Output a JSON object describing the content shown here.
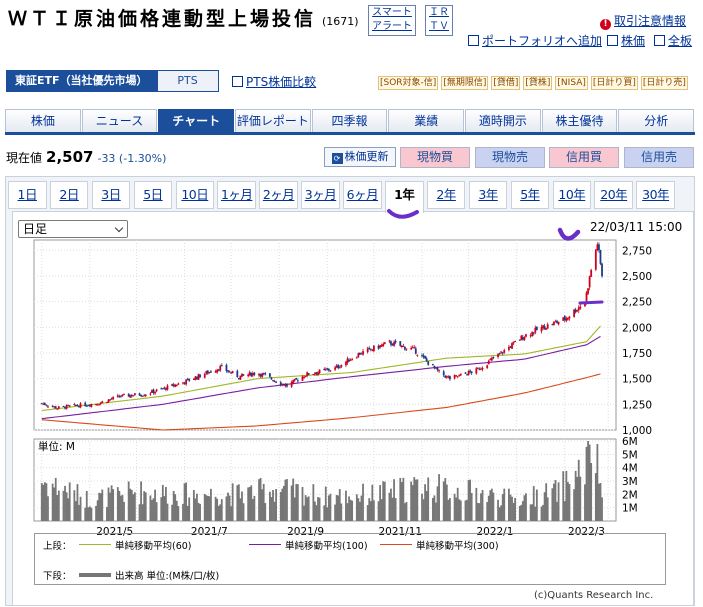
{
  "header": {
    "title": "ＷＴＩ原油価格連動型上場投信",
    "code": "(1671)",
    "smart_alert": [
      "スマート",
      "アラート"
    ],
    "ir_tv": [
      "ＩＲ",
      "ＴＶ"
    ],
    "caution_link": "取引注意情報",
    "portfolio_link": "ポートフォリオへ追加",
    "stock_price_link": "株価",
    "all_boards_link": "全板"
  },
  "market": {
    "active": "東証ETF（当社優先市場）",
    "pts": "PTS",
    "pts_compare": "PTS株価比較",
    "badges": [
      "[SOR対象-信]",
      "[無期限信]",
      "[貸借]",
      "[貸株]",
      "[NISA]",
      "[日計り買]",
      "[日計り売]"
    ]
  },
  "nav_tabs": [
    "株価",
    "ニュース",
    "チャート",
    "評価レポート",
    "四季報",
    "業績",
    "適時開示",
    "株主優待",
    "分析"
  ],
  "nav_active": "チャート",
  "quote": {
    "label": "現在値",
    "price": "2,507",
    "change": "-33 (-1.30%)",
    "refresh_button": "株価更新",
    "buy_spot": "現物買",
    "sell_spot": "現物売",
    "buy_margin": "信用買",
    "sell_margin": "信用売"
  },
  "periods": [
    "1日",
    "2日",
    "3日",
    "5日",
    "10日",
    "1ヶ月",
    "2ヶ月",
    "3ヶ月",
    "6ヶ月",
    "1年",
    "2年",
    "3年",
    "5年",
    "10年",
    "20年",
    "30年"
  ],
  "period_active": "1年",
  "chart_controls": {
    "interval_select": "日足",
    "datetime": "22/03/11 15:00"
  },
  "legend": {
    "upper_label": "上段：",
    "ma60": "単純移動平均(60)",
    "ma100": "単純移動平均(100)",
    "ma300": "単純移動平均(300)",
    "lower_label": "下段：",
    "volume": "出来高 単位:(M株/口/枚)"
  },
  "copyright": "(c)Quants Research Inc.",
  "colors": {
    "up": "#d0021b",
    "down": "#1b3a8c",
    "ma60": "#a0b828",
    "ma100": "#7a1fa2",
    "ma300": "#d94a1a",
    "volume": "#777777",
    "accent": "#1b4e9b",
    "annotation": "#6a2fc9"
  },
  "chart_data": [
    {
      "type": "candlestick",
      "interval": "daily",
      "ylim": [
        1000,
        2850
      ],
      "yticks": [
        1000,
        1250,
        1500,
        1750,
        2000,
        2250,
        2500,
        2750
      ],
      "ytick_labels": [
        "1,000",
        "1,250",
        "1,500",
        "1,750",
        "2,000",
        "2,250",
        "2,500",
        "2,750"
      ],
      "xticks": [
        "2021/5",
        "2021/7",
        "2021/9",
        "2021/11",
        "2022/1",
        "2022/3"
      ],
      "close_path": [
        [
          "2021/03/15",
          1260
        ],
        [
          "2021/03/25",
          1215
        ],
        [
          "2021/04/05",
          1235
        ],
        [
          "2021/04/20",
          1260
        ],
        [
          "2021/05/05",
          1330
        ],
        [
          "2021/05/20",
          1350
        ],
        [
          "2021/06/01",
          1400
        ],
        [
          "2021/06/15",
          1470
        ],
        [
          "2021/06/30",
          1560
        ],
        [
          "2021/07/08",
          1610
        ],
        [
          "2021/07/20",
          1520
        ],
        [
          "2021/08/01",
          1560
        ],
        [
          "2021/08/20",
          1430
        ],
        [
          "2021/09/01",
          1540
        ],
        [
          "2021/09/20",
          1600
        ],
        [
          "2021/10/05",
          1740
        ],
        [
          "2021/10/25",
          1850
        ],
        [
          "2021/11/10",
          1780
        ],
        [
          "2021/11/26",
          1560
        ],
        [
          "2021/12/03",
          1500
        ],
        [
          "2021/12/20",
          1580
        ],
        [
          "2022/01/05",
          1750
        ],
        [
          "2022/01/20",
          1920
        ],
        [
          "2022/02/01",
          2000
        ],
        [
          "2022/02/15",
          2080
        ],
        [
          "2022/02/28",
          2250
        ],
        [
          "2022/03/04",
          2560
        ],
        [
          "2022/03/08",
          2820
        ],
        [
          "2022/03/11",
          2507
        ]
      ],
      "overlays": [
        {
          "name": "単純移動平均(60)",
          "values": [
            [
              "2021/03/15",
              1190
            ],
            [
              "2021/06/01",
              1330
            ],
            [
              "2021/08/01",
              1500
            ],
            [
              "2021/10/01",
              1560
            ],
            [
              "2021/12/01",
              1700
            ],
            [
              "2022/01/20",
              1740
            ],
            [
              "2022/03/01",
              1860
            ],
            [
              "2022/03/11",
              2030
            ]
          ]
        },
        {
          "name": "単純移動平均(100)",
          "values": [
            [
              "2021/03/15",
              1110
            ],
            [
              "2021/06/01",
              1250
            ],
            [
              "2021/08/01",
              1410
            ],
            [
              "2021/10/01",
              1520
            ],
            [
              "2021/12/01",
              1620
            ],
            [
              "2022/01/20",
              1690
            ],
            [
              "2022/03/01",
              1830
            ],
            [
              "2022/03/11",
              1920
            ]
          ]
        },
        {
          "name": "単純移動平均(300)",
          "values": [
            [
              "2021/03/15",
              1100
            ],
            [
              "2021/06/01",
              1000
            ],
            [
              "2021/08/01",
              1040
            ],
            [
              "2021/10/01",
              1120
            ],
            [
              "2021/12/01",
              1220
            ],
            [
              "2022/01/20",
              1360
            ],
            [
              "2022/03/01",
              1510
            ],
            [
              "2022/03/11",
              1550
            ]
          ]
        }
      ]
    },
    {
      "type": "bar",
      "name": "出来高",
      "unit_label": "単位: M",
      "ylim": [
        0,
        6
      ],
      "yticks": [
        1,
        2,
        3,
        4,
        5,
        6
      ],
      "ytick_labels": [
        "1M",
        "2M",
        "3M",
        "4M",
        "5M",
        "6M"
      ],
      "profile_millions": [
        [
          "2021/03/15",
          3.0
        ],
        [
          "2021/04/15",
          1.6
        ],
        [
          "2021/05/15",
          2.2
        ],
        [
          "2021/06/15",
          2.0
        ],
        [
          "2021/07/15",
          2.0
        ],
        [
          "2021/08/15",
          2.4
        ],
        [
          "2021/09/15",
          1.8
        ],
        [
          "2021/10/15",
          2.0
        ],
        [
          "2021/11/15",
          2.6
        ],
        [
          "2021/12/15",
          2.2
        ],
        [
          "2022/01/15",
          1.6
        ],
        [
          "2022/02/10",
          2.2
        ],
        [
          "2022/02/28",
          4.0
        ],
        [
          "2022/03/05",
          5.8
        ],
        [
          "2022/03/11",
          2.2
        ]
      ]
    }
  ]
}
